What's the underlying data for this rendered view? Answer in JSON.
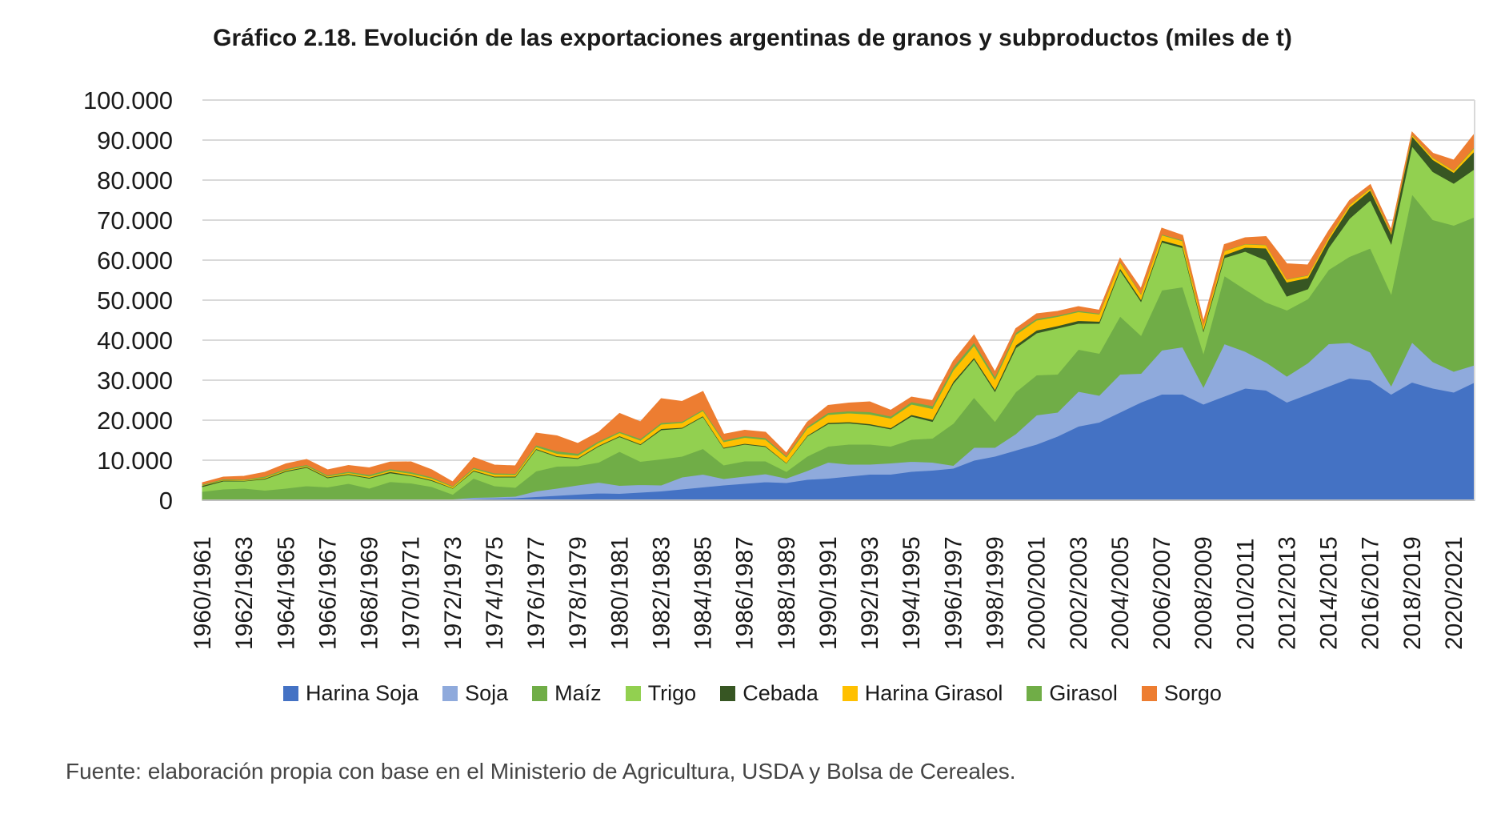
{
  "title": "Gráfico 2.18. Evolución de las exportaciones argentinas de granos y subproductos (miles de t)",
  "source_note": "Fuente: elaboración propia con base en el Ministerio de Agricultura, USDA y Bolsa de Cereales.",
  "colors": {
    "gridline": "#D9D9D9",
    "axis_line": "#BFBFBF",
    "axis_text": "#1a1a1a",
    "title_text": "#1a1a1a",
    "source_text": "#454545"
  },
  "y_axis": {
    "min": 0,
    "max": 100000,
    "step": 10000,
    "tick_labels": [
      "0",
      "10.000",
      "20.000",
      "30.000",
      "40.000",
      "50.000",
      "60.000",
      "70.000",
      "80.000",
      "90.000",
      "100.000"
    ]
  },
  "x_axis": {
    "tick_every": 2,
    "tick_labels": [
      "1960/1961",
      "1962/1963",
      "1964/1965",
      "1966/1967",
      "1968/1969",
      "1970/1971",
      "1972/1973",
      "1974/1975",
      "1976/1977",
      "1978/1979",
      "1980/1981",
      "1982/1983",
      "1984/1985",
      "1986/1987",
      "1988/1989",
      "1990/1991",
      "1992/1993",
      "1994/1995",
      "1996/1997",
      "1998/1999",
      "2000/2001",
      "2002/2003",
      "2004/2005",
      "2006/2007",
      "2008/2009",
      "2010/2011",
      "2012/2013",
      "2014/2015",
      "2016/2017",
      "2018/2019",
      "2020/2021"
    ]
  },
  "chart_data": {
    "type": "area",
    "stacked": true,
    "title": "Gráfico 2.18. Evolución de las exportaciones argentinas de granos y subproductos (miles de t)",
    "xlabel": "",
    "ylabel": "",
    "ylim": [
      0,
      100000
    ],
    "grid": true,
    "legend_position": "bottom",
    "x": [
      "1960/1961",
      "1961/1962",
      "1962/1963",
      "1963/1964",
      "1964/1965",
      "1965/1966",
      "1966/1967",
      "1967/1968",
      "1968/1969",
      "1969/1970",
      "1970/1971",
      "1971/1972",
      "1972/1973",
      "1973/1974",
      "1974/1975",
      "1975/1976",
      "1976/1977",
      "1977/1978",
      "1978/1979",
      "1979/1980",
      "1980/1981",
      "1981/1982",
      "1982/1983",
      "1983/1984",
      "1984/1985",
      "1985/1986",
      "1986/1987",
      "1987/1988",
      "1988/1989",
      "1989/1990",
      "1990/1991",
      "1991/1992",
      "1992/1993",
      "1993/1994",
      "1994/1995",
      "1995/1996",
      "1996/1997",
      "1997/1998",
      "1998/1999",
      "1999/2000",
      "2000/2001",
      "2001/2002",
      "2002/2003",
      "2003/2004",
      "2004/2005",
      "2005/2006",
      "2006/2007",
      "2007/2008",
      "2008/2009",
      "2009/2010",
      "2010/2011",
      "2011/2012",
      "2012/2013",
      "2013/2014",
      "2014/2015",
      "2015/2016",
      "2016/2017",
      "2017/2018",
      "2018/2019",
      "2019/2020",
      "2020/2021",
      "2021/2022"
    ],
    "series": [
      {
        "name": "Harina Soja",
        "color": "#4472C4",
        "values": [
          0,
          0,
          0,
          0,
          0,
          0,
          0,
          0,
          0,
          50,
          100,
          100,
          200,
          400,
          500,
          600,
          900,
          1200,
          1500,
          1800,
          1700,
          2000,
          2300,
          2800,
          3300,
          3800,
          4200,
          4600,
          4400,
          5200,
          5500,
          6000,
          6500,
          6500,
          7200,
          7500,
          8000,
          10000,
          11000,
          12500,
          14000,
          16000,
          18500,
          19500,
          22000,
          24500,
          26500,
          26500,
          24000,
          26000,
          28000,
          27500,
          24500,
          26500,
          28500,
          30500,
          30000,
          26500,
          29500,
          28000,
          27000,
          29500
        ]
      },
      {
        "name": "Soja",
        "color": "#8FAADC",
        "values": [
          0,
          0,
          0,
          0,
          0,
          0,
          0,
          0,
          0,
          0,
          0,
          100,
          100,
          300,
          300,
          400,
          1400,
          1800,
          2300,
          2700,
          2000,
          1900,
          1500,
          3000,
          3200,
          1600,
          1800,
          2000,
          1100,
          2200,
          4000,
          3000,
          2500,
          2800,
          2500,
          2000,
          700,
          3200,
          2200,
          4100,
          7300,
          6000,
          8700,
          6700,
          9500,
          7200,
          11000,
          11800,
          4300,
          13100,
          9200,
          7000,
          6500,
          7800,
          10600,
          8900,
          7000,
          2100,
          10000,
          6600,
          5200,
          4300
        ]
      },
      {
        "name": "Maíz",
        "color": "#70AD47",
        "values": [
          2200,
          2800,
          3000,
          2500,
          3000,
          3600,
          3300,
          4200,
          3000,
          4600,
          4200,
          3200,
          1200,
          4800,
          2800,
          2200,
          5000,
          5500,
          4800,
          5000,
          8500,
          5800,
          6500,
          5200,
          6400,
          3400,
          3800,
          3200,
          1700,
          3600,
          4000,
          5000,
          5000,
          4200,
          5500,
          6000,
          10500,
          12500,
          6500,
          10500,
          10000,
          9500,
          10500,
          10500,
          14500,
          9500,
          15000,
          15000,
          8500,
          17000,
          15500,
          15000,
          16500,
          16000,
          18500,
          21500,
          26000,
          23000,
          37000,
          35500,
          36500,
          37000
        ]
      },
      {
        "name": "Trigo",
        "color": "#92D050",
        "values": [
          1200,
          2000,
          1800,
          2800,
          4200,
          4600,
          2300,
          2200,
          2500,
          2200,
          1800,
          1500,
          1500,
          1800,
          2200,
          2600,
          5400,
          2400,
          1800,
          4000,
          3700,
          4200,
          7300,
          7000,
          8000,
          4200,
          4200,
          3600,
          2100,
          5000,
          5600,
          5300,
          4800,
          4300,
          5800,
          4200,
          10000,
          9600,
          7500,
          11000,
          10500,
          11500,
          6500,
          7500,
          11500,
          8500,
          12000,
          9800,
          5500,
          4500,
          9500,
          10500,
          3500,
          2500,
          5500,
          9500,
          12000,
          12500,
          12000,
          12000,
          10500,
          12000
        ]
      },
      {
        "name": "Cebada",
        "color": "#375623",
        "values": [
          300,
          200,
          100,
          200,
          200,
          200,
          200,
          200,
          200,
          300,
          200,
          200,
          100,
          200,
          200,
          200,
          200,
          200,
          200,
          200,
          200,
          200,
          300,
          200,
          200,
          200,
          200,
          200,
          100,
          200,
          300,
          300,
          300,
          300,
          400,
          500,
          500,
          400,
          500,
          700,
          700,
          600,
          700,
          500,
          500,
          500,
          500,
          500,
          500,
          700,
          1000,
          3000,
          3500,
          2800,
          2000,
          2800,
          2500,
          2500,
          2500,
          3000,
          2700,
          4500
        ]
      },
      {
        "name": "Harina Girasol",
        "color": "#FFC000",
        "values": [
          100,
          100,
          100,
          200,
          200,
          200,
          200,
          300,
          300,
          300,
          400,
          400,
          300,
          400,
          500,
          400,
          500,
          600,
          600,
          700,
          800,
          900,
          1100,
          1200,
          1300,
          1400,
          1500,
          1600,
          1400,
          1800,
          2000,
          2200,
          2400,
          2400,
          2600,
          2700,
          2800,
          3000,
          2500,
          2600,
          2500,
          2300,
          2200,
          1800,
          1500,
          1300,
          1300,
          1200,
          1000,
          1000,
          800,
          800,
          700,
          600,
          600,
          600,
          500,
          400,
          400,
          500,
          500,
          900
        ]
      },
      {
        "name": "Girasol",
        "color": "#70AD47",
        "values": [
          200,
          200,
          200,
          300,
          300,
          300,
          300,
          300,
          400,
          400,
          400,
          300,
          200,
          300,
          300,
          300,
          400,
          600,
          500,
          400,
          300,
          400,
          400,
          300,
          300,
          400,
          400,
          400,
          300,
          400,
          500,
          500,
          600,
          500,
          600,
          700,
          800,
          800,
          700,
          500,
          400,
          300,
          300,
          200,
          200,
          200,
          200,
          200,
          100,
          100,
          100,
          100,
          100,
          100,
          100,
          100,
          100,
          100,
          100,
          100,
          100,
          200
        ]
      },
      {
        "name": "Sorgo",
        "color": "#ED7D31",
        "values": [
          400,
          500,
          800,
          1000,
          1200,
          1300,
          1300,
          1500,
          1700,
          1700,
          2500,
          1800,
          1000,
          2500,
          2000,
          1900,
          3000,
          3800,
          2500,
          2200,
          4500,
          4200,
          6000,
          5000,
          4500,
          1500,
          1400,
          1400,
          700,
          1100,
          1800,
          2000,
          2500,
          1500,
          1200,
          1300,
          1500,
          1800,
          1200,
          1000,
          1200,
          1000,
          1000,
          800,
          800,
          1200,
          1500,
          1200,
          800,
          1500,
          1500,
          2000,
          3800,
          2500,
          1500,
          1000,
          800,
          500,
          500,
          1000,
          2500,
          3200
        ]
      }
    ]
  }
}
